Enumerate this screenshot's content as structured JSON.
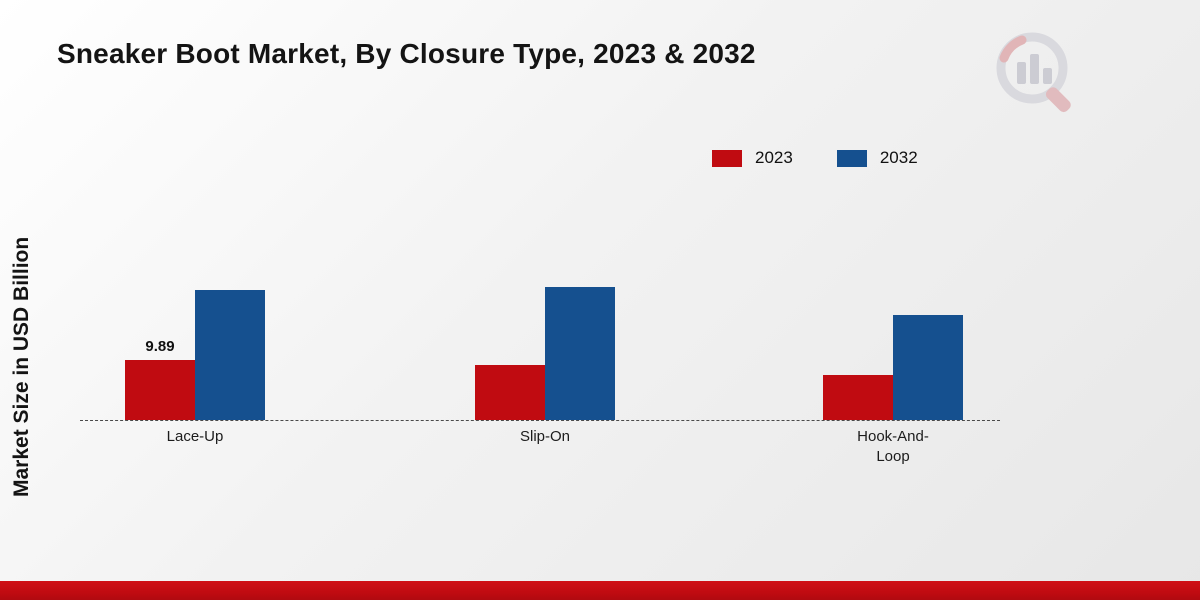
{
  "title": "Sneaker Boot Market, By Closure Type, 2023 & 2032",
  "y_axis_label": "Market Size in USD Billion",
  "legend": [
    {
      "label": "2023",
      "color": "#c00b11"
    },
    {
      "label": "2032",
      "color": "#15508f"
    }
  ],
  "colors": {
    "series_2023": "#c00b11",
    "series_2032": "#15508f",
    "footer_strip": "#c00b11"
  },
  "logo": {
    "icon": "market-research-magnifier-chart-logo"
  },
  "chart_data": {
    "type": "bar",
    "categories": [
      "Lace-Up",
      "Slip-On",
      "Hook-And-Loop"
    ],
    "series": [
      {
        "name": "2023",
        "color": "#c00b11",
        "values": [
          9.89,
          9.1,
          7.4
        ]
      },
      {
        "name": "2032",
        "color": "#15508f",
        "values": [
          21.4,
          21.9,
          17.3
        ]
      }
    ],
    "annotations": [
      {
        "series": "2023",
        "category": "Lace-Up",
        "text": "9.89"
      }
    ],
    "title": "Sneaker Boot Market, By Closure Type, 2023 & 2032",
    "xlabel": "",
    "ylabel": "Market Size in USD Billion",
    "ylim": [
      0,
      25
    ],
    "grid": false,
    "y_axis_ticks_visible": false,
    "baseline_style": "dashed",
    "legend_position": "top-right"
  }
}
